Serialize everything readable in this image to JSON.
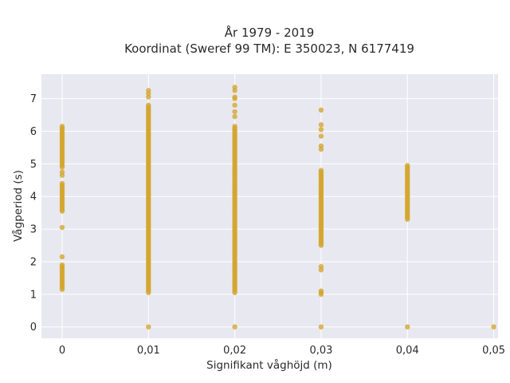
{
  "chart_data": {
    "type": "scatter",
    "title_lines": [
      "År 1979 - 2019",
      "Koordinat (Sweref 99 TM): E 350023, N 6177419"
    ],
    "xlabel": "Signifikant våghöjd (m)",
    "ylabel": "Vågperiod (s)",
    "xlim": [
      -0.0024,
      0.0505
    ],
    "ylim": [
      -0.35,
      7.75
    ],
    "x_ticks": [
      0,
      0.01,
      0.02,
      0.03,
      0.04,
      0.05
    ],
    "x_tick_labels": [
      "0",
      "0,01",
      "0,02",
      "0,03",
      "0,04",
      "0,05"
    ],
    "y_ticks": [
      0,
      1,
      2,
      3,
      4,
      5,
      6,
      7
    ],
    "y_tick_labels": [
      "0",
      "1",
      "2",
      "3",
      "4",
      "5",
      "6",
      "7"
    ],
    "grid": true,
    "marker_color": "#d4a52c",
    "series": [
      {
        "points": [
          {
            "x": 0,
            "y_from": 3.6,
            "y_to": 4.4
          },
          {
            "x": 0,
            "y_from": 4.9,
            "y_to": 6.1
          },
          {
            "x": 0,
            "y_from": 1.15,
            "y_to": 1.9
          },
          {
            "x": 0,
            "y": [
              6.15,
              4.75,
              4.65,
              3.55,
              3.05,
              2.15
            ]
          },
          {
            "x": 0.01,
            "y_from": 1.05,
            "y_to": 6.8
          },
          {
            "x": 0.01,
            "y": [
              7.05,
              7.15,
              7.25,
              0
            ]
          },
          {
            "x": 0.02,
            "y_from": 1.05,
            "y_to": 6.15
          },
          {
            "x": 0.02,
            "y": [
              6.45,
              6.6,
              6.8,
              7.0,
              7.05,
              7.25,
              7.35,
              0
            ]
          },
          {
            "x": 0.03,
            "y_from": 2.5,
            "y_to": 4.8
          },
          {
            "x": 0.03,
            "y": [
              6.65,
              6.2,
              6.05,
              5.85,
              5.55,
              5.45,
              1.85,
              1.75,
              1.1,
              1.05,
              1.0,
              0
            ]
          },
          {
            "x": 0.04,
            "y_from": 3.3,
            "y_to": 4.95
          },
          {
            "x": 0.04,
            "y": [
              0
            ]
          },
          {
            "x": 0.05,
            "y": [
              0
            ]
          }
        ]
      }
    ]
  }
}
